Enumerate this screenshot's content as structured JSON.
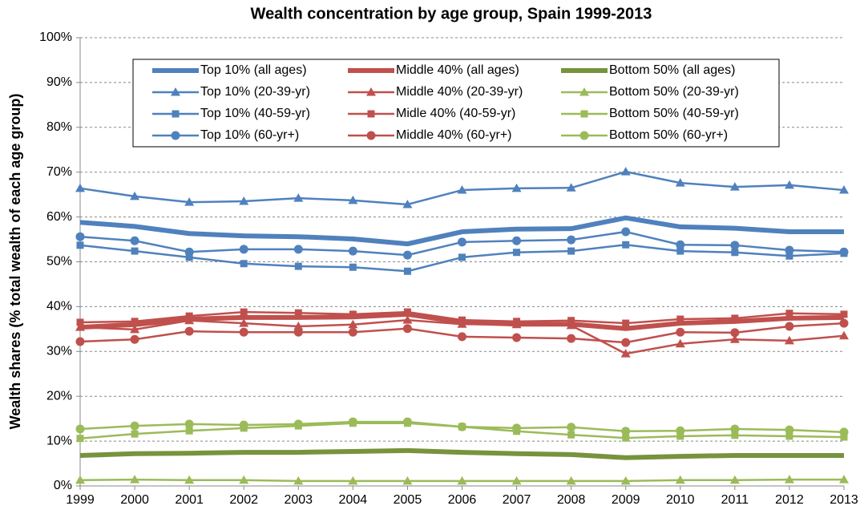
{
  "chart_data": {
    "type": "line",
    "title": "Wealth concentration by age group, Spain 1999-2013",
    "y_label": "Wealth shares (% total wealth of each age group)",
    "x": [
      1999,
      2000,
      2001,
      2002,
      2003,
      2004,
      2005,
      2006,
      2007,
      2008,
      2009,
      2010,
      2011,
      2012,
      2013
    ],
    "xlim": [
      1999,
      2013
    ],
    "xticks": [
      1999,
      2000,
      2001,
      2002,
      2003,
      2004,
      2005,
      2006,
      2007,
      2008,
      2009,
      2010,
      2011,
      2012,
      2013
    ],
    "ylim": [
      0,
      100
    ],
    "yticks": [
      {
        "value": 0,
        "label": "0%"
      },
      {
        "value": 10,
        "label": "10%"
      },
      {
        "value": 20,
        "label": "20%"
      },
      {
        "value": 30,
        "label": "30%"
      },
      {
        "value": 40,
        "label": "40%"
      },
      {
        "value": 50,
        "label": "50%"
      },
      {
        "value": 60,
        "label": "60%"
      },
      {
        "value": 70,
        "label": "70%"
      },
      {
        "value": 80,
        "label": "80%"
      },
      {
        "value": 90,
        "label": "90%"
      },
      {
        "value": 100,
        "label": "100%"
      }
    ],
    "grid": true,
    "legend_position": "top",
    "series": [
      {
        "name": "Top 10% (all ages)",
        "color": "#4f81bd",
        "line_width": 6,
        "values": [
          58.8,
          57.9,
          56.3,
          55.8,
          55.6,
          55.1,
          54.0,
          56.7,
          57.3,
          57.4,
          59.8,
          57.8,
          57.5,
          56.7,
          56.7
        ]
      },
      {
        "name": "Top 10% (20-39-yr)",
        "color": "#4f81bd",
        "line_width": 2.5,
        "marker": "triangle",
        "values": [
          66.4,
          64.6,
          63.3,
          63.5,
          64.2,
          63.7,
          62.8,
          66.0,
          66.4,
          66.5,
          70.1,
          67.6,
          66.7,
          67.1,
          66.0
        ]
      },
      {
        "name": "Top 10% (40-59-yr)",
        "color": "#4f81bd",
        "line_width": 2.5,
        "marker": "square",
        "values": [
          53.7,
          52.4,
          51.0,
          49.6,
          49.0,
          48.8,
          47.9,
          51.0,
          52.1,
          52.4,
          53.8,
          52.4,
          52.1,
          51.3,
          51.9
        ]
      },
      {
        "name": "Top 10% (60-yr+)",
        "color": "#4f81bd",
        "line_width": 2.5,
        "marker": "circle",
        "values": [
          55.6,
          54.7,
          52.2,
          52.8,
          52.8,
          52.4,
          51.5,
          54.4,
          54.7,
          54.9,
          56.7,
          53.8,
          53.7,
          52.6,
          52.2
        ]
      },
      {
        "name": "Middle 40% (all ages)",
        "color": "#c0504d",
        "line_width": 6,
        "values": [
          35.4,
          36.0,
          37.2,
          37.6,
          37.6,
          37.7,
          38.3,
          36.5,
          36.1,
          36.1,
          35.1,
          36.3,
          36.7,
          37.4,
          37.6
        ]
      },
      {
        "name": "Middle 40% (20-39-yr)",
        "color": "#c0504d",
        "line_width": 2.5,
        "marker": "triangle",
        "values": [
          35.4,
          34.9,
          36.9,
          36.3,
          35.6,
          36.0,
          37.0,
          36.1,
          36.0,
          35.8,
          29.5,
          31.7,
          32.7,
          32.4,
          33.5
        ]
      },
      {
        "name": "Midle 40% (40-59-yr)",
        "color": "#c0504d",
        "line_width": 2.5,
        "marker": "square",
        "values": [
          36.5,
          36.7,
          37.9,
          38.8,
          38.6,
          38.3,
          38.8,
          37.0,
          36.7,
          36.9,
          36.3,
          37.2,
          37.4,
          38.5,
          38.3
        ]
      },
      {
        "name": "Middle 40% (60-yr+)",
        "color": "#c0504d",
        "line_width": 2.5,
        "marker": "circle",
        "values": [
          32.2,
          32.7,
          34.5,
          34.3,
          34.3,
          34.3,
          35.1,
          33.3,
          33.1,
          32.9,
          32.0,
          34.3,
          34.2,
          35.6,
          36.3
        ]
      },
      {
        "name": "Bottom 50% (all ages)",
        "color": "#77933c",
        "line_width": 6,
        "values": [
          6.8,
          7.2,
          7.3,
          7.5,
          7.5,
          7.7,
          7.9,
          7.5,
          7.2,
          7.0,
          6.3,
          6.6,
          6.8,
          6.8,
          6.8
        ]
      },
      {
        "name": "Bottom 50% (20-39-yr)",
        "color": "#9bbb59",
        "line_width": 2.5,
        "marker": "triangle",
        "values": [
          1.3,
          1.4,
          1.3,
          1.3,
          1.1,
          1.1,
          1.1,
          1.1,
          1.1,
          1.1,
          1.1,
          1.3,
          1.3,
          1.4,
          1.4
        ]
      },
      {
        "name": "Bottom 50% (40-59-yr)",
        "color": "#9bbb59",
        "line_width": 2.5,
        "marker": "square",
        "values": [
          10.6,
          11.6,
          12.3,
          12.9,
          13.4,
          14.0,
          14.0,
          13.2,
          12.2,
          11.4,
          10.7,
          11.1,
          11.3,
          11.1,
          10.9
        ]
      },
      {
        "name": "Bottom 50% (60-yr+)",
        "color": "#9bbb59",
        "line_width": 2.5,
        "marker": "circle",
        "values": [
          12.7,
          13.4,
          13.8,
          13.6,
          13.8,
          14.3,
          14.3,
          13.2,
          12.9,
          13.1,
          12.2,
          12.3,
          12.7,
          12.5,
          12.0
        ]
      }
    ]
  }
}
